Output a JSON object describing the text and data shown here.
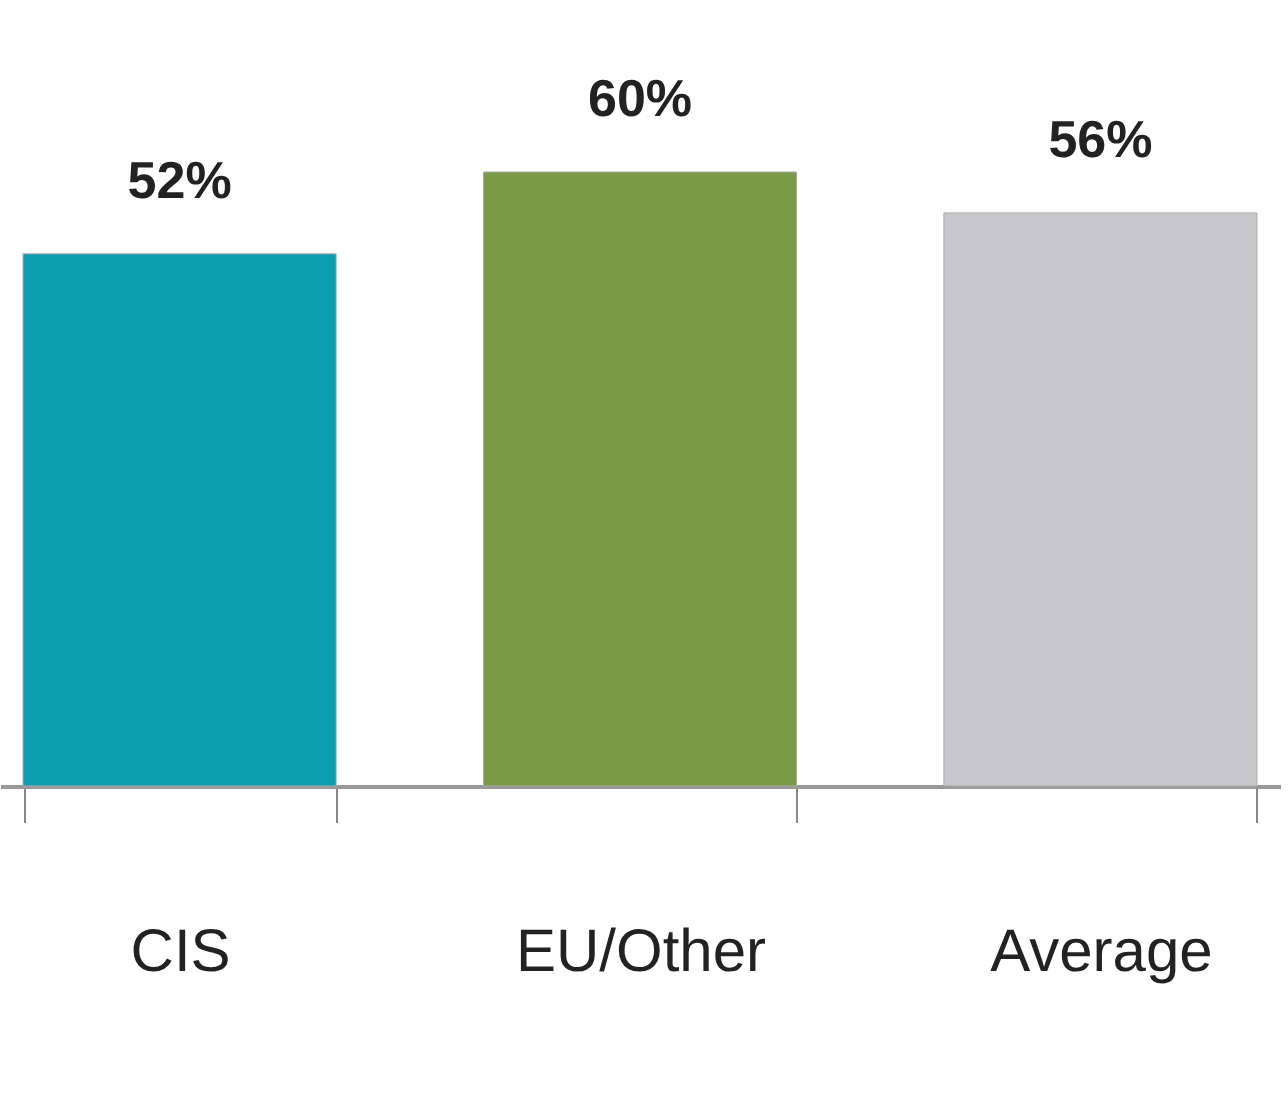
{
  "chart_data": {
    "type": "bar",
    "categories": [
      "CIS",
      "EU/Other",
      "Average"
    ],
    "values": [
      52,
      60,
      56
    ],
    "colors": [
      "#0b9db0",
      "#7a9a45",
      "#c8c8ca"
    ],
    "value_labels": [
      "52%",
      "60%",
      "56%"
    ],
    "grid": false
  }
}
